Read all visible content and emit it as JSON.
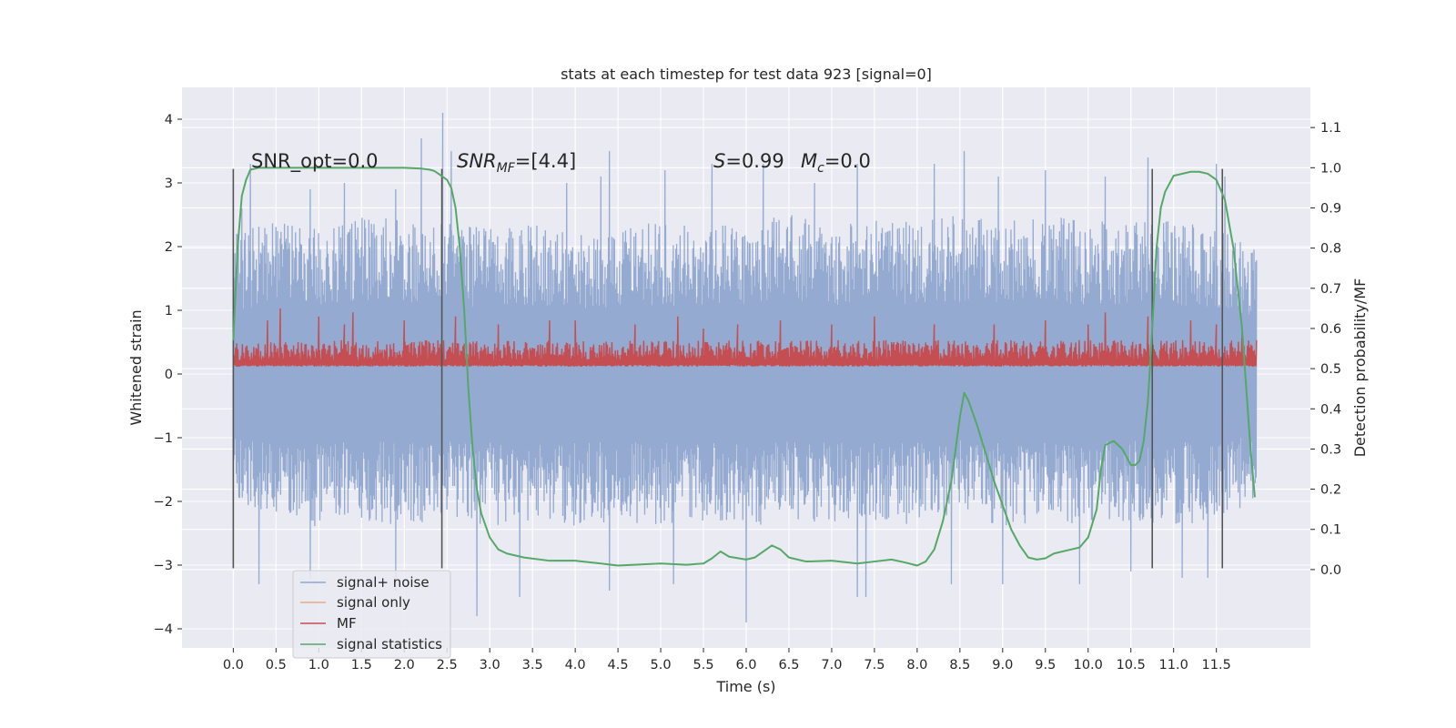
{
  "chart_data": {
    "type": "line",
    "title": "stats at each timestep for test data 923 [signal=0]",
    "xlabel": "Time (s)",
    "ylabel": "Whitened strain",
    "y2label": "Detection probability/MF",
    "xlim": [
      -0.6,
      12.6
    ],
    "ylim": [
      -4.3,
      4.5
    ],
    "y2lim": [
      -0.195,
      1.2
    ],
    "x_ticks": [
      "0.0",
      "0.5",
      "1.0",
      "1.5",
      "2.0",
      "2.5",
      "3.0",
      "3.5",
      "4.0",
      "4.5",
      "5.0",
      "5.5",
      "6.0",
      "6.5",
      "7.0",
      "7.5",
      "8.0",
      "8.5",
      "9.0",
      "9.5",
      "10.0",
      "10.5",
      "11.0",
      "11.5"
    ],
    "y_ticks": [
      "−4",
      "−3",
      "−2",
      "−1",
      "0",
      "1",
      "2",
      "3",
      "4"
    ],
    "y2_ticks": [
      "0.0",
      "0.1",
      "0.2",
      "0.3",
      "0.4",
      "0.5",
      "0.6",
      "0.7",
      "0.8",
      "0.9",
      "1.0",
      "1.1"
    ],
    "grid": true,
    "legend_position": "lower-left",
    "annotations": {
      "snr_opt": "SNR_opt=0.0",
      "snr_mf_main": "SNR",
      "snr_mf_sub": "MF",
      "snr_mf_tail": "=[4.4]",
      "s_main": "S",
      "s_tail": "=0.99",
      "mc_main": "M",
      "mc_sub": "c",
      "mc_tail": "=0.0"
    },
    "vertical_markers": [
      0.0,
      2.44,
      10.75,
      11.57
    ],
    "colors": {
      "background": "#eaeaf2",
      "grid": "#ffffff",
      "signal_noise": "#8fa6cf",
      "signal_only": "#e8a98c",
      "mf": "#c44e52",
      "stat": "#55a868",
      "marker": "#555555"
    },
    "series": [
      {
        "name": "signal+ noise",
        "axis": "left",
        "x_range": [
          0.0,
          11.97
        ],
        "envelope_upper": [
          [
            0.0,
            2.2
          ],
          [
            0.5,
            2.4
          ],
          [
            1.0,
            2.3
          ],
          [
            1.5,
            2.5
          ],
          [
            2.0,
            2.4
          ],
          [
            2.5,
            2.4
          ],
          [
            3.0,
            2.3
          ],
          [
            3.5,
            2.4
          ],
          [
            4.0,
            2.3
          ],
          [
            4.5,
            2.3
          ],
          [
            5.0,
            2.4
          ],
          [
            5.5,
            2.3
          ],
          [
            6.0,
            2.4
          ],
          [
            6.5,
            2.5
          ],
          [
            7.0,
            2.4
          ],
          [
            7.5,
            2.5
          ],
          [
            8.0,
            2.4
          ],
          [
            8.5,
            2.5
          ],
          [
            9.0,
            2.4
          ],
          [
            9.5,
            2.5
          ],
          [
            10.0,
            2.4
          ],
          [
            10.5,
            2.4
          ],
          [
            11.0,
            2.4
          ],
          [
            11.5,
            2.3
          ],
          [
            11.97,
            2.0
          ]
        ],
        "envelope_lower": [
          [
            0.0,
            -2.0
          ],
          [
            0.5,
            -2.3
          ],
          [
            1.0,
            -2.4
          ],
          [
            1.5,
            -2.3
          ],
          [
            2.0,
            -2.4
          ],
          [
            2.5,
            -2.3
          ],
          [
            3.0,
            -2.4
          ],
          [
            3.5,
            -2.3
          ],
          [
            4.0,
            -2.4
          ],
          [
            4.5,
            -2.3
          ],
          [
            5.0,
            -2.4
          ],
          [
            5.5,
            -2.3
          ],
          [
            6.0,
            -2.4
          ],
          [
            6.5,
            -2.3
          ],
          [
            7.0,
            -2.4
          ],
          [
            7.5,
            -2.3
          ],
          [
            8.0,
            -2.4
          ],
          [
            8.5,
            -2.3
          ],
          [
            9.0,
            -2.4
          ],
          [
            9.5,
            -2.3
          ],
          [
            10.0,
            -2.4
          ],
          [
            10.5,
            -2.3
          ],
          [
            11.0,
            -2.4
          ],
          [
            11.5,
            -2.3
          ],
          [
            11.97,
            -2.0
          ]
        ],
        "peaks": [
          [
            0.1,
            2.6
          ],
          [
            0.2,
            3.3
          ],
          [
            0.9,
            2.9
          ],
          [
            1.3,
            3.0
          ],
          [
            1.9,
            2.9
          ],
          [
            2.2,
            3.7
          ],
          [
            2.45,
            4.1
          ],
          [
            2.55,
            3.5
          ],
          [
            3.9,
            3.0
          ],
          [
            4.3,
            3.1
          ],
          [
            4.4,
            3.5
          ],
          [
            5.05,
            3.2
          ],
          [
            5.6,
            3.3
          ],
          [
            6.2,
            3.3
          ],
          [
            6.8,
            3.0
          ],
          [
            7.3,
            3.3
          ],
          [
            8.2,
            3.3
          ],
          [
            8.55,
            3.5
          ],
          [
            8.95,
            3.1
          ],
          [
            9.5,
            3.2
          ],
          [
            10.2,
            3.1
          ],
          [
            10.7,
            3.4
          ],
          [
            11.5,
            3.3
          ],
          [
            11.6,
            3.1
          ]
        ],
        "troughs": [
          [
            0.3,
            -3.3
          ],
          [
            0.9,
            -3.2
          ],
          [
            1.9,
            -3.4
          ],
          [
            2.85,
            -3.8
          ],
          [
            3.35,
            -3.5
          ],
          [
            4.4,
            -3.4
          ],
          [
            5.15,
            -3.3
          ],
          [
            6.0,
            -3.9
          ],
          [
            7.3,
            -3.5
          ],
          [
            7.4,
            -3.5
          ],
          [
            8.4,
            -3.3
          ],
          [
            9.0,
            -3.3
          ],
          [
            9.9,
            -3.3
          ],
          [
            10.5,
            -3.1
          ],
          [
            11.1,
            -3.2
          ],
          [
            11.4,
            -3.2
          ]
        ]
      },
      {
        "name": "signal only",
        "axis": "left",
        "values": []
      },
      {
        "name": "MF",
        "axis": "right",
        "x_range": [
          0.0,
          11.97
        ],
        "baseline": 0.505,
        "typical_top": 0.56,
        "peaks": [
          [
            0.4,
            0.62
          ],
          [
            0.55,
            0.65
          ],
          [
            1.0,
            0.63
          ],
          [
            1.3,
            0.61
          ],
          [
            1.4,
            0.64
          ],
          [
            2.0,
            0.62
          ],
          [
            2.6,
            0.63
          ],
          [
            3.1,
            0.61
          ],
          [
            3.7,
            0.62
          ],
          [
            4.0,
            0.62
          ],
          [
            4.7,
            0.61
          ],
          [
            5.2,
            0.63
          ],
          [
            5.5,
            0.6
          ],
          [
            5.9,
            0.61
          ],
          [
            6.4,
            0.62
          ],
          [
            7.0,
            0.61
          ],
          [
            7.5,
            0.63
          ],
          [
            8.2,
            0.61
          ],
          [
            8.9,
            0.61
          ],
          [
            9.5,
            0.62
          ],
          [
            10.0,
            0.61
          ],
          [
            10.2,
            0.64
          ],
          [
            10.7,
            0.63
          ],
          [
            11.2,
            0.62
          ],
          [
            11.5,
            0.61
          ],
          [
            11.8,
            0.59
          ]
        ]
      },
      {
        "name": "signal statistics",
        "axis": "right",
        "x": [
          0.0,
          0.05,
          0.1,
          0.15,
          0.2,
          0.3,
          0.5,
          1.0,
          1.5,
          2.0,
          2.2,
          2.3,
          2.35,
          2.4,
          2.5,
          2.55,
          2.6,
          2.65,
          2.7,
          2.75,
          2.8,
          2.85,
          2.9,
          2.95,
          3.0,
          3.1,
          3.2,
          3.4,
          3.7,
          4.0,
          4.3,
          4.5,
          4.8,
          5.0,
          5.3,
          5.5,
          5.6,
          5.7,
          5.8,
          6.0,
          6.1,
          6.2,
          6.3,
          6.4,
          6.5,
          6.7,
          7.0,
          7.3,
          7.5,
          7.7,
          7.85,
          8.0,
          8.1,
          8.2,
          8.3,
          8.4,
          8.5,
          8.55,
          8.6,
          8.7,
          8.8,
          8.9,
          9.0,
          9.1,
          9.2,
          9.3,
          9.4,
          9.5,
          9.6,
          9.8,
          9.9,
          10.0,
          10.1,
          10.15,
          10.2,
          10.3,
          10.4,
          10.5,
          10.55,
          10.6,
          10.65,
          10.7,
          10.75,
          10.8,
          10.85,
          10.9,
          11.0,
          11.2,
          11.3,
          11.4,
          11.5,
          11.6,
          11.7,
          11.8,
          11.9,
          11.95
        ],
        "values": [
          0.57,
          0.8,
          0.93,
          0.97,
          0.995,
          1.0,
          1.0,
          1.0,
          1.0,
          1.0,
          0.998,
          0.995,
          0.992,
          0.985,
          0.97,
          0.95,
          0.9,
          0.8,
          0.65,
          0.45,
          0.3,
          0.2,
          0.14,
          0.11,
          0.08,
          0.05,
          0.04,
          0.03,
          0.022,
          0.022,
          0.015,
          0.01,
          0.013,
          0.015,
          0.012,
          0.015,
          0.028,
          0.045,
          0.032,
          0.025,
          0.03,
          0.045,
          0.06,
          0.05,
          0.03,
          0.02,
          0.022,
          0.015,
          0.02,
          0.025,
          0.018,
          0.01,
          0.02,
          0.05,
          0.12,
          0.22,
          0.38,
          0.44,
          0.42,
          0.36,
          0.29,
          0.22,
          0.16,
          0.1,
          0.06,
          0.03,
          0.025,
          0.028,
          0.04,
          0.05,
          0.055,
          0.08,
          0.15,
          0.25,
          0.31,
          0.32,
          0.3,
          0.26,
          0.26,
          0.27,
          0.32,
          0.42,
          0.6,
          0.8,
          0.9,
          0.94,
          0.98,
          0.99,
          0.99,
          0.985,
          0.97,
          0.92,
          0.8,
          0.6,
          0.3,
          0.18
        ]
      }
    ]
  }
}
